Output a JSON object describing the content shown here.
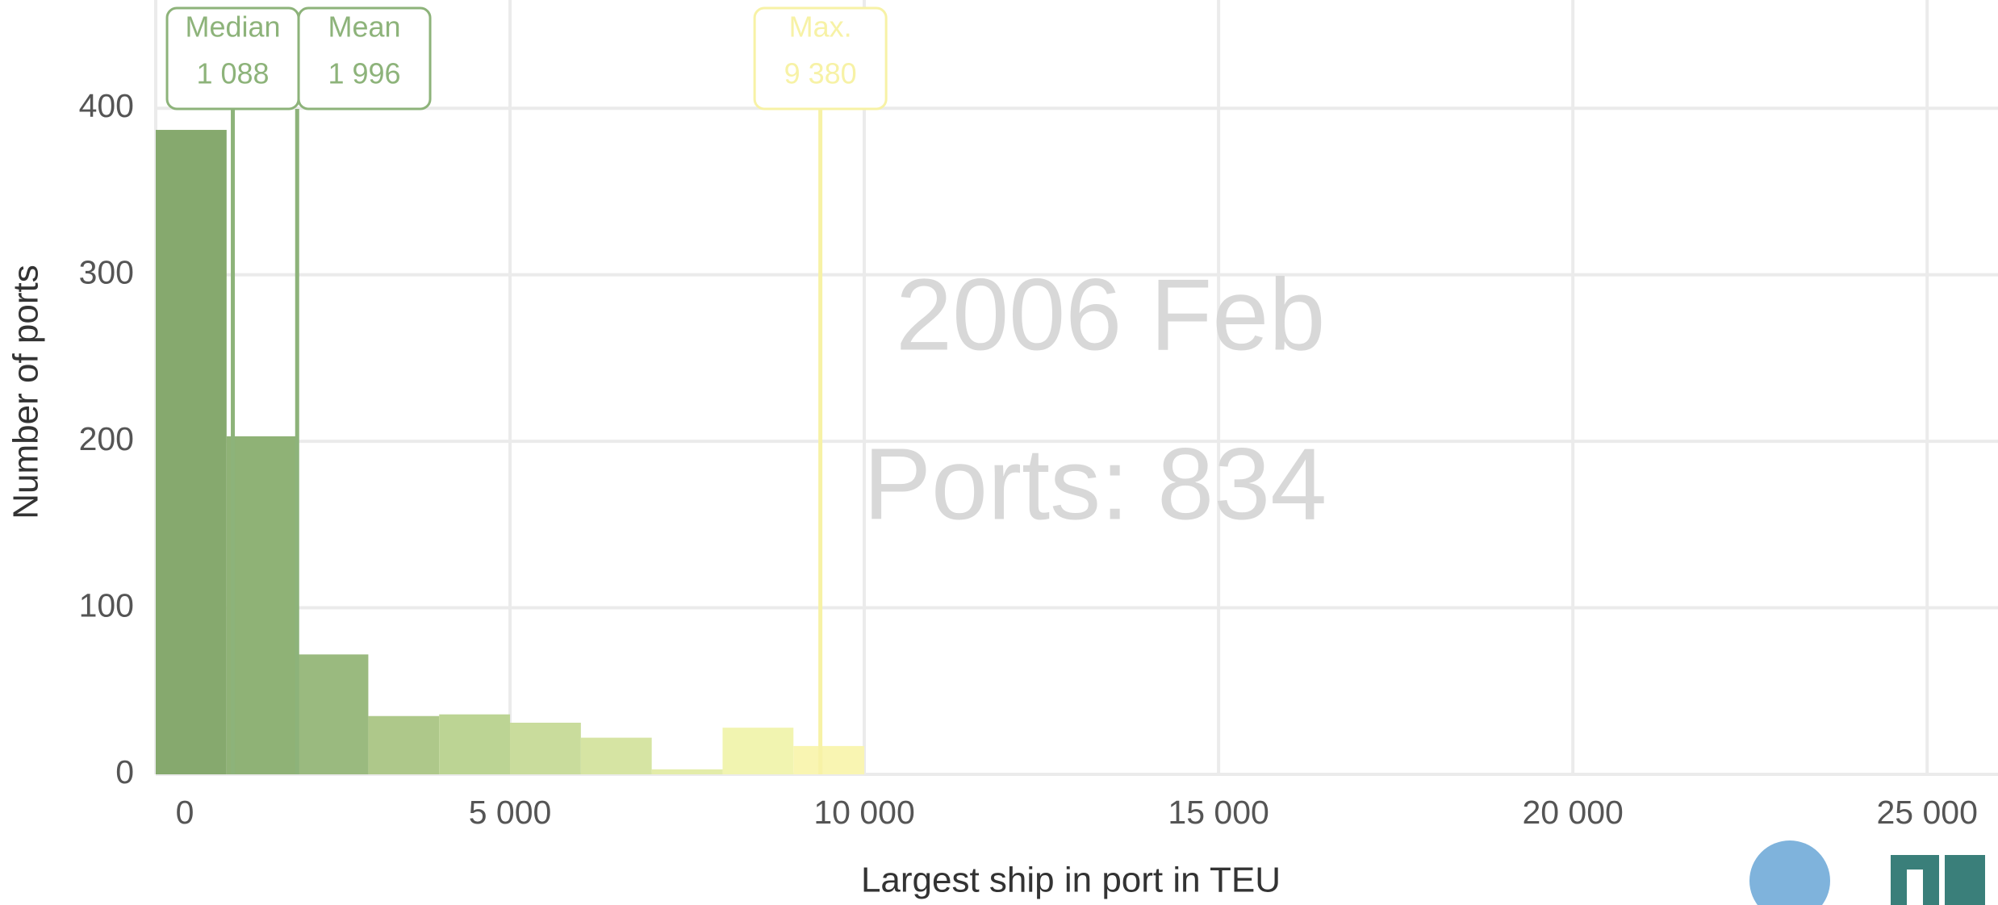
{
  "chart_data": {
    "type": "histogram",
    "x_label": "Largest ship in port in TEU",
    "y_label": "Number of ports",
    "bins": [
      0,
      1000,
      2000,
      3000,
      4000,
      5000,
      6000,
      7000,
      8000,
      9000,
      10000
    ],
    "counts": [
      387,
      203,
      72,
      35,
      36,
      31,
      22,
      3,
      28,
      17
    ],
    "colors": [
      "#86a96e",
      "#8fb276",
      "#9aba7f",
      "#aec88a",
      "#bcd494",
      "#c9dc9c",
      "#d6e4a3",
      "#e3eca9",
      "#f1f4b0",
      "#f9f5b2"
    ],
    "xlim": [
      0,
      26000
    ],
    "ylim": [
      0,
      465
    ],
    "xticks": [
      0,
      {
        "value": 5000,
        "label": "5 000"
      },
      {
        "value": 10000,
        "label": "10 000"
      },
      {
        "value": 15000,
        "label": "15 000"
      },
      {
        "value": 20000,
        "label": "20 000"
      },
      {
        "value": 25000,
        "label": "25 000"
      }
    ],
    "yticks": [
      0,
      100,
      200,
      300,
      400
    ],
    "grid": true,
    "annotations": [
      {
        "label": "Median",
        "value": 1088,
        "value_label": "1 088",
        "color": "#8db37a"
      },
      {
        "label": "Mean",
        "value": 1996,
        "value_label": "1 996",
        "color": "#8db37a"
      },
      {
        "label": "Max.",
        "value": 9380,
        "value_label": "9 380",
        "color": "#f7f2a6"
      }
    ],
    "watermark": [
      "2006 Feb",
      "Ports: 834"
    ]
  }
}
